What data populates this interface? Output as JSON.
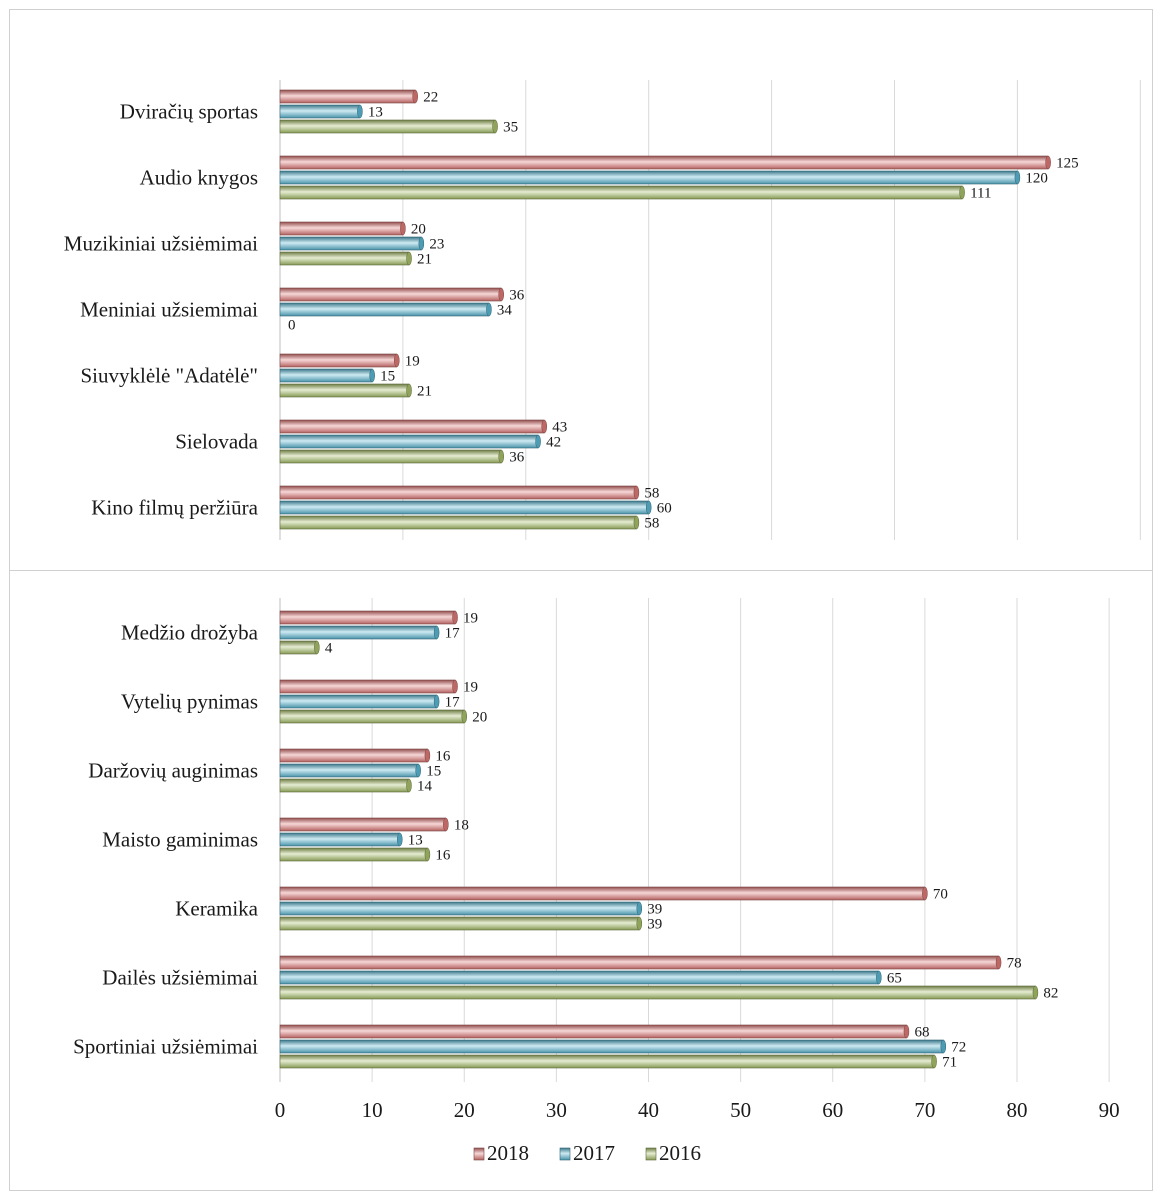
{
  "chart_data": [
    {
      "type": "bar",
      "orientation": "horizontal",
      "categories": [
        "Dviračių sportas",
        "Audio knygos",
        "Muzikiniai užsiėmimai",
        "Meniniai užsiemimai",
        "Siuvyklėlė \"Adatėlė\"",
        "Sielovada",
        "Kino filmų peržiūra"
      ],
      "series": [
        {
          "name": "2018",
          "values": [
            22,
            125,
            20,
            36,
            19,
            43,
            58
          ]
        },
        {
          "name": "2017",
          "values": [
            13,
            120,
            23,
            34,
            15,
            42,
            60
          ]
        },
        {
          "name": "2016",
          "values": [
            35,
            111,
            21,
            0,
            21,
            36,
            58
          ]
        }
      ],
      "grid": true
    },
    {
      "type": "bar",
      "orientation": "horizontal",
      "categories": [
        "Medžio drožyba",
        "Vytelių pynimas",
        "Daržovių auginimas ",
        "Maisto gaminimas",
        "Keramika",
        "Dailės užsiėmimai",
        "Sportiniai užsiėmimai"
      ],
      "series": [
        {
          "name": "2018",
          "values": [
            19,
            19,
            16,
            18,
            70,
            78,
            68
          ]
        },
        {
          "name": "2017",
          "values": [
            17,
            17,
            15,
            13,
            39,
            65,
            72
          ]
        },
        {
          "name": "2016",
          "values": [
            4,
            20,
            14,
            16,
            39,
            82,
            71
          ]
        }
      ],
      "xlim": [
        0,
        90
      ],
      "xticks": [
        "0",
        "10",
        "20",
        "30",
        "40",
        "50",
        "60",
        "70",
        "80",
        "90"
      ],
      "grid": true,
      "legend": [
        "2018",
        "2017",
        "2016"
      ],
      "legend_position": "bottom"
    }
  ],
  "colors": {
    "2018": "#e07a78",
    "2017": "#5ab8d4",
    "2016": "#a9c06a",
    "grid": "#d9d9d9",
    "border": "#d0d0d0"
  }
}
